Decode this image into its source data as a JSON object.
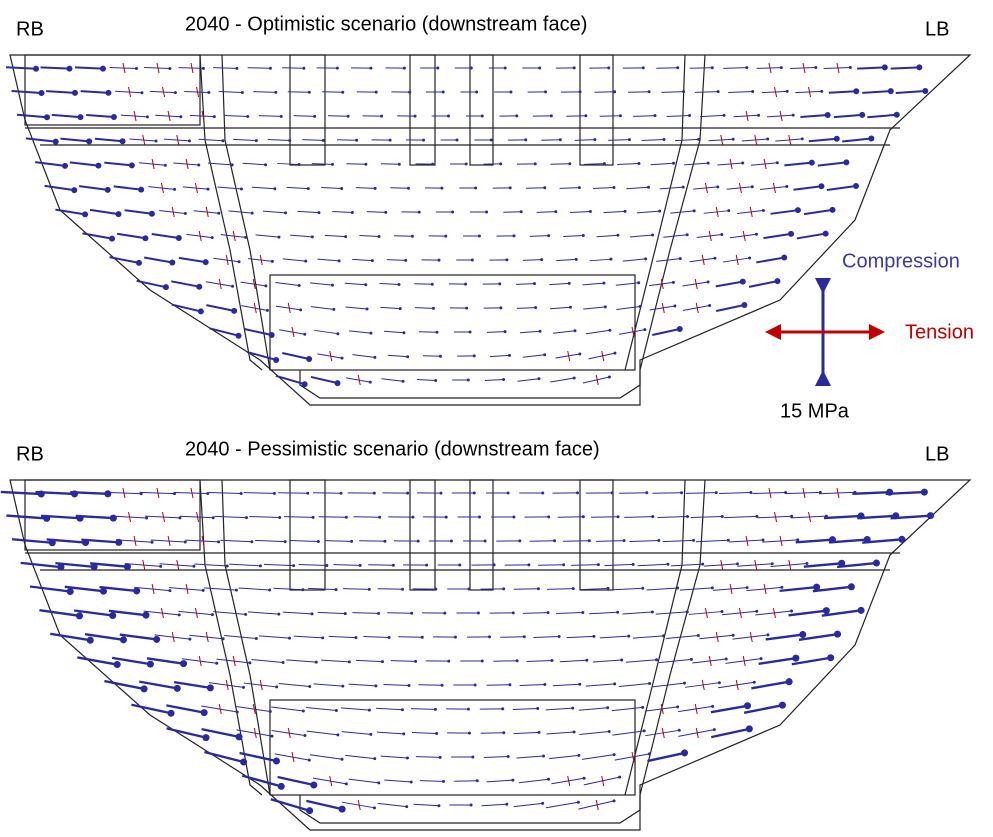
{
  "panels": [
    {
      "title": "2040 - Optimistic scenario (downstream face)",
      "left_label": "RB",
      "right_label": "LB"
    },
    {
      "title": "2040 - Pessimistic scenario (downstream face)",
      "left_label": "RB",
      "right_label": "LB"
    }
  ],
  "legend": {
    "compression": "Compression",
    "tension": "Tension",
    "scale": "15 MPa"
  }
}
